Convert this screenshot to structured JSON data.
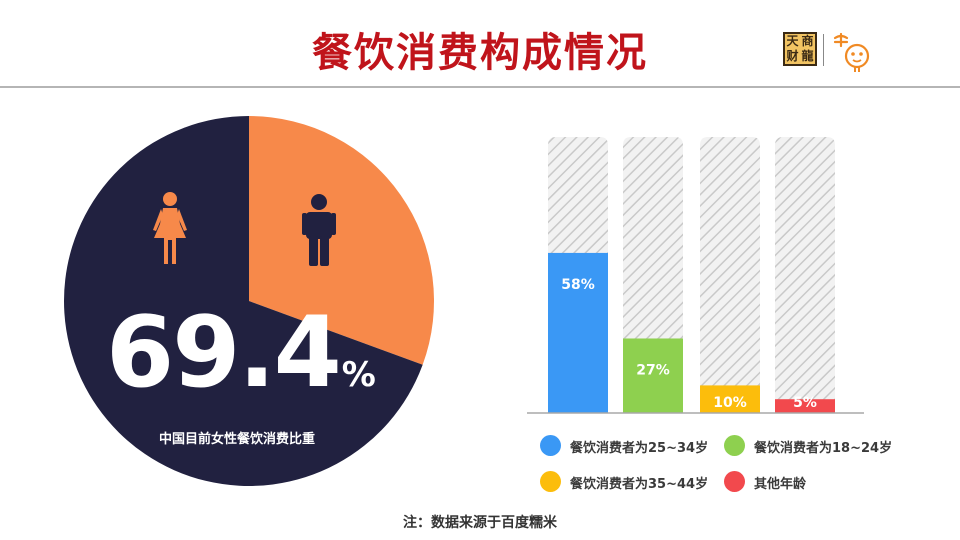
{
  "page": {
    "title": "餐饮消费构成情况",
    "note": "注：数据来源于百度糯米"
  },
  "logo": {
    "chars": [
      "天",
      "商",
      "财",
      "龍"
    ],
    "mark_color": "#f08a24"
  },
  "colors": {
    "navy": "#212140",
    "orange": "#f7894a",
    "hatch_bg": "#f2f2f2",
    "hatch_line": "#c9c9c9"
  },
  "chart_data": [
    {
      "type": "pie",
      "slices": [
        {
          "label": "中国目前女性餐饮消费比重",
          "value": 69.4,
          "color": "#212140"
        },
        {
          "label": "",
          "value": 30.6,
          "color": "#f7894a"
        }
      ],
      "center_value": "69.4",
      "center_unit": "%",
      "caption": "中国目前女性餐饮消费比重",
      "icons": [
        "female-icon",
        "male-icon"
      ]
    },
    {
      "type": "bar",
      "categories": [
        "餐饮消费者为25~34岁",
        "餐饮消费者为18~24岁",
        "餐饮消费者为35~44岁",
        "其他年龄"
      ],
      "values": [
        58,
        27,
        10,
        5
      ],
      "labels": [
        "58%",
        "27%",
        "10%",
        "5%"
      ],
      "colors": [
        "#3a98f5",
        "#8ed04f",
        "#fcbd0c",
        "#f2494d"
      ],
      "ylim": [
        0,
        100
      ],
      "legend_position": "bottom"
    }
  ]
}
